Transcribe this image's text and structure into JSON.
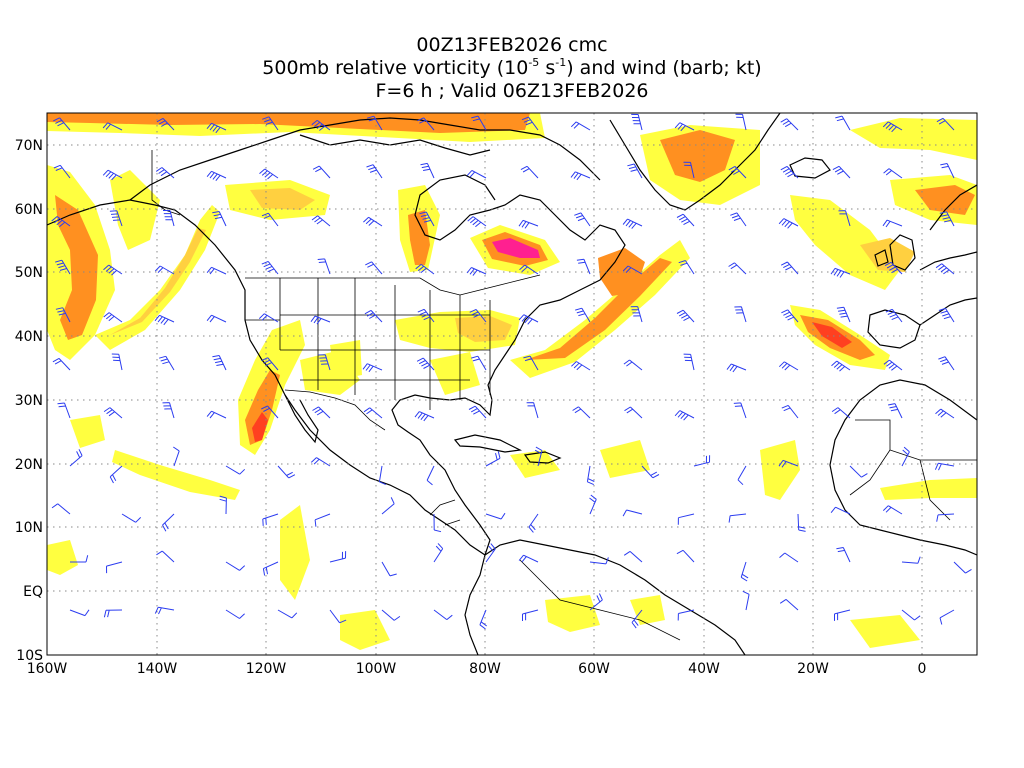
{
  "header": {
    "line1": "00Z13FEB2026 cmc",
    "line2_pre": "500mb relative vorticity (10",
    "line2_exp1": "-5",
    "line2_mid": " s",
    "line2_exp2": "-1",
    "line2_post": ") and wind (barb; kt)",
    "line3": "F=6 h ; Valid 06Z13FEB2026"
  },
  "map": {
    "lon_range": [
      -160,
      10
    ],
    "lat_range": [
      -10,
      75
    ],
    "lon_ticks": [
      {
        "value": -160,
        "label": "160W"
      },
      {
        "value": -140,
        "label": "140W"
      },
      {
        "value": -120,
        "label": "120W"
      },
      {
        "value": -100,
        "label": "100W"
      },
      {
        "value": -80,
        "label": "80W"
      },
      {
        "value": -60,
        "label": "60W"
      },
      {
        "value": -40,
        "label": "40W"
      },
      {
        "value": -20,
        "label": "20W"
      },
      {
        "value": 0,
        "label": "0"
      }
    ],
    "lat_ticks": [
      {
        "value": 70,
        "label": "70N"
      },
      {
        "value": 60,
        "label": "60N"
      },
      {
        "value": 50,
        "label": "50N"
      },
      {
        "value": 40,
        "label": "40N"
      },
      {
        "value": 30,
        "label": "30N"
      },
      {
        "value": 20,
        "label": "20N"
      },
      {
        "value": 10,
        "label": "10N"
      },
      {
        "value": 0,
        "label": "EQ"
      },
      {
        "value": -10,
        "label": "10S"
      }
    ],
    "grid": "dotted",
    "colors": {
      "coast": "#000000",
      "barb": "#2b3cf0",
      "vort_low": "#ffff40",
      "vort_mid": "#ffd040",
      "vort_high": "#ff9020",
      "vort_peak": "#ff4020",
      "vort_max": "#ff2090"
    }
  }
}
